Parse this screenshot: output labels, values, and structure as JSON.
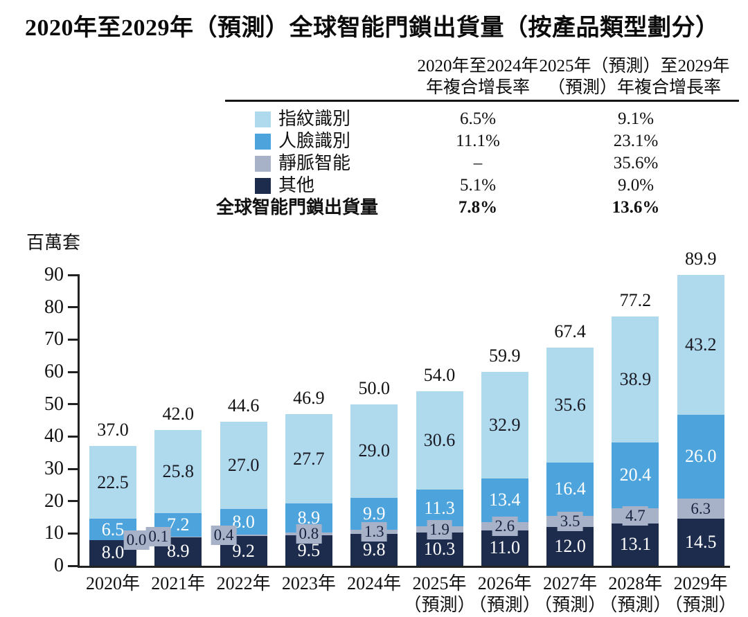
{
  "title": "2020年至2029年（預測）全球智能門鎖出貨量（按產品類型劃分）",
  "legend_table": {
    "headers": [
      {
        "line1": "2020年至2024年",
        "line2": "年複合增長率"
      },
      {
        "line1": "2025年（預測）至2029年",
        "line2": "（預測）年複合增長率"
      }
    ],
    "rows": [
      {
        "key": "fingerprint",
        "label": "指紋識別",
        "swatch": "#AFD9EC",
        "cagr_2020_2024": "6.5%",
        "cagr_2025_2029": "9.1%",
        "bold": false
      },
      {
        "key": "face",
        "label": "人臉識別",
        "swatch": "#4DA3DB",
        "cagr_2020_2024": "11.1%",
        "cagr_2025_2029": "23.1%",
        "bold": false
      },
      {
        "key": "vein",
        "label": "靜脈智能",
        "swatch": "#A7B2C8",
        "cagr_2020_2024": "–",
        "cagr_2025_2029": "35.6%",
        "bold": false
      },
      {
        "key": "other",
        "label": "其他",
        "swatch": "#1D2C4D",
        "cagr_2020_2024": "5.1%",
        "cagr_2025_2029": "9.0%",
        "bold": false
      },
      {
        "key": "total",
        "label": "全球智能門鎖出貨量",
        "swatch": null,
        "cagr_2020_2024": "7.8%",
        "cagr_2025_2029": "13.6%",
        "bold": true
      }
    ]
  },
  "chart_data": {
    "type": "bar",
    "stacked": true,
    "title": "2020年至2029年（預測）全球智能門鎖出貨量（按產品類型劃分）",
    "ylabel": "百萬套",
    "ylim": [
      0,
      90
    ],
    "yticks": [
      0,
      10,
      20,
      30,
      40,
      50,
      60,
      70,
      80,
      90
    ],
    "grid": false,
    "legend_position": "top-table",
    "categories": [
      {
        "line1": "2020年",
        "line2": ""
      },
      {
        "line1": "2021年",
        "line2": ""
      },
      {
        "line1": "2022年",
        "line2": ""
      },
      {
        "line1": "2023年",
        "line2": ""
      },
      {
        "line1": "2024年",
        "line2": ""
      },
      {
        "line1": "2025年",
        "line2": "（預測）"
      },
      {
        "line1": "2026年",
        "line2": "（預測）"
      },
      {
        "line1": "2027年",
        "line2": "（預測）"
      },
      {
        "line1": "2028年",
        "line2": "（預測）"
      },
      {
        "line1": "2029年",
        "line2": "（預測）"
      }
    ],
    "series": [
      {
        "key": "other",
        "name": "其他",
        "color": "#1D2C4D",
        "text_color": "#FFFFFF",
        "values": [
          8.0,
          8.9,
          9.2,
          9.5,
          9.8,
          10.3,
          11.0,
          12.0,
          13.1,
          14.5
        ]
      },
      {
        "key": "vein",
        "name": "靜脈智能",
        "color": "#A7B2C8",
        "text_color": "#17233E",
        "values": [
          0.0,
          0.1,
          0.4,
          0.8,
          1.3,
          1.9,
          2.6,
          3.5,
          4.7,
          6.3
        ],
        "label_modes": [
          "right",
          "left",
          "left",
          "center",
          "center",
          "center",
          "center",
          "center",
          "center",
          "center"
        ]
      },
      {
        "key": "face",
        "name": "人臉識別",
        "color": "#4DA3DB",
        "text_color": "#FFFFFF",
        "values": [
          6.5,
          7.2,
          8.0,
          8.9,
          9.9,
          11.3,
          13.4,
          16.4,
          20.4,
          26.0
        ]
      },
      {
        "key": "fingerprint",
        "name": "指紋識別",
        "color": "#AFD9EC",
        "text_color": "#1A1A24",
        "values": [
          22.5,
          25.8,
          27.0,
          27.7,
          29.0,
          30.6,
          32.9,
          35.6,
          38.9,
          43.2
        ]
      }
    ],
    "totals": [
      37.0,
      42.0,
      44.6,
      46.9,
      50.0,
      54.0,
      59.9,
      67.4,
      77.2,
      89.9
    ]
  },
  "styles": {
    "axis_color": "#222222",
    "rule_color": "#151515",
    "text_color": "#111111"
  }
}
